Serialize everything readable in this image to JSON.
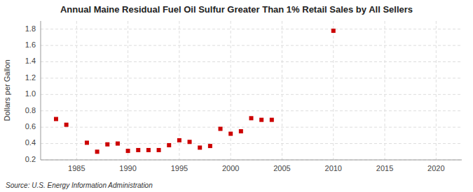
{
  "chart_data": {
    "type": "scatter",
    "title": "Annual Maine Residual Fuel Oil Sulfur Greater Than 1% Retail Sales by All Sellers",
    "y_label": "Dollars per Gallon",
    "source": "Source: U.S. Energy Information Administration",
    "x": [
      1983,
      1984,
      1986,
      1987,
      1988,
      1989,
      1990,
      1991,
      1992,
      1993,
      1994,
      1995,
      1996,
      1997,
      1998,
      1999,
      2000,
      2001,
      2002,
      2003,
      2004,
      2010
    ],
    "values": [
      0.7,
      0.63,
      0.41,
      0.3,
      0.39,
      0.4,
      0.31,
      0.32,
      0.32,
      0.32,
      0.38,
      0.44,
      0.42,
      0.35,
      0.37,
      0.58,
      0.52,
      0.55,
      0.71,
      0.69,
      0.69,
      1.78
    ],
    "color": "#cc0000",
    "marker": "square",
    "xlim": [
      1981.5,
      2022.5
    ],
    "ylim": [
      0.2,
      1.9
    ],
    "xticks": [
      1985,
      1990,
      1995,
      2000,
      2005,
      2010,
      2015,
      2020
    ],
    "yticks": [
      0.2,
      0.4,
      0.6,
      0.8,
      {
        "value": 1.0,
        "label": "1.0"
      },
      1.2,
      1.4,
      1.6,
      1.8
    ],
    "grid": true
  }
}
